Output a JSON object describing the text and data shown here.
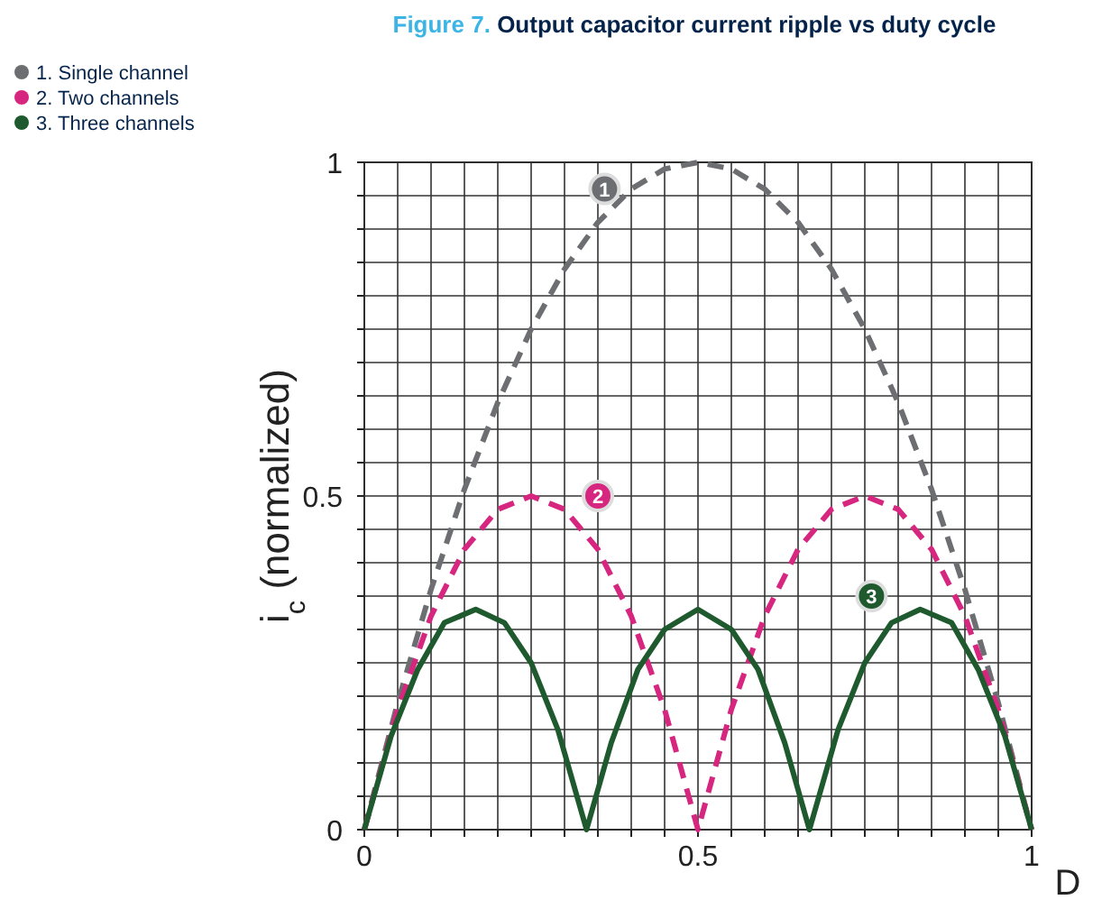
{
  "chart_data": {
    "type": "line",
    "title": "Figure 7. Output capacitor current ripple vs duty cycle",
    "xlabel": "D",
    "ylabel": "i$_{c}$ (normalized)",
    "xlim": [
      0,
      1
    ],
    "ylim": [
      0,
      1
    ],
    "xticks": [
      0,
      {
        "value": 0.05,
        "label": null
      },
      {
        "value": 0.1,
        "label": null
      },
      {
        "value": 0.15,
        "label": null
      },
      {
        "value": 0.2,
        "label": null
      },
      {
        "value": 0.25,
        "label": null
      },
      {
        "value": 0.3,
        "label": null
      },
      {
        "value": 0.35,
        "label": null
      },
      {
        "value": 0.4,
        "label": null
      },
      {
        "value": 0.45,
        "label": null
      },
      0.5,
      {
        "value": 0.55,
        "label": null
      },
      {
        "value": 0.6,
        "label": null
      },
      {
        "value": 0.65,
        "label": null
      },
      {
        "value": 0.7,
        "label": null
      },
      {
        "value": 0.75,
        "label": null
      },
      {
        "value": 0.8,
        "label": null
      },
      {
        "value": 0.85,
        "label": null
      },
      {
        "value": 0.9,
        "label": null
      },
      {
        "value": 0.95,
        "label": null
      },
      1
    ],
    "yticks": [
      0,
      {
        "value": 0.05,
        "label": null
      },
      {
        "value": 0.1,
        "label": null
      },
      {
        "value": 0.15,
        "label": null
      },
      {
        "value": 0.2,
        "label": null
      },
      {
        "value": 0.25,
        "label": null
      },
      {
        "value": 0.3,
        "label": null
      },
      {
        "value": 0.35,
        "label": null
      },
      {
        "value": 0.4,
        "label": null
      },
      {
        "value": 0.45,
        "label": null
      },
      0.5,
      {
        "value": 0.55,
        "label": null
      },
      {
        "value": 0.6,
        "label": null
      },
      {
        "value": 0.65,
        "label": null
      },
      {
        "value": 0.7,
        "label": null
      },
      {
        "value": 0.75,
        "label": null
      },
      {
        "value": 0.8,
        "label": null
      },
      {
        "value": 0.85,
        "label": null
      },
      {
        "value": 0.9,
        "label": null
      },
      {
        "value": 0.95,
        "label": null
      },
      1
    ],
    "grid": true,
    "legend": "top left",
    "series": [
      {
        "name": "1. Single channel",
        "color": "#6d6e71",
        "line_style": "dashed",
        "x": [
          0,
          0.05,
          0.1,
          0.15,
          0.2,
          0.25,
          0.3,
          0.35,
          0.4,
          0.45,
          0.5,
          0.55,
          0.6,
          0.65,
          0.7,
          0.75,
          0.8,
          0.85,
          0.9,
          0.95,
          1
        ],
        "values": [
          0,
          0.19,
          0.36,
          0.51,
          0.64,
          0.75,
          0.84,
          0.91,
          0.96,
          0.99,
          1,
          0.99,
          0.96,
          0.91,
          0.84,
          0.75,
          0.64,
          0.51,
          0.36,
          0.19,
          0
        ]
      },
      {
        "name": "2. Two channels",
        "color": "#d6267f",
        "line_style": "dashed",
        "x": [
          0,
          0.05,
          0.1,
          0.15,
          0.2,
          0.25,
          0.3,
          0.35,
          0.4,
          0.45,
          0.5,
          0.55,
          0.6,
          0.65,
          0.7,
          0.75,
          0.8,
          0.85,
          0.9,
          0.95,
          1
        ],
        "values": [
          0,
          0.18,
          0.32,
          0.42,
          0.48,
          0.5,
          0.48,
          0.42,
          0.32,
          0.18,
          0,
          0.18,
          0.32,
          0.42,
          0.48,
          0.5,
          0.48,
          0.42,
          0.32,
          0.18,
          0
        ]
      },
      {
        "name": "3. Three channels",
        "color": "#1e5a2e",
        "line_style": "solid",
        "x": [
          0,
          0.04,
          0.08,
          0.12,
          0.167,
          0.21,
          0.25,
          0.29,
          0.333,
          0.37,
          0.41,
          0.45,
          0.5,
          0.55,
          0.59,
          0.63,
          0.667,
          0.71,
          0.75,
          0.79,
          0.833,
          0.88,
          0.92,
          0.96,
          1
        ],
        "values": [
          0,
          0.14,
          0.24,
          0.31,
          0.33,
          0.31,
          0.25,
          0.15,
          0,
          0.13,
          0.24,
          0.3,
          0.33,
          0.3,
          0.24,
          0.13,
          0,
          0.15,
          0.25,
          0.31,
          0.33,
          0.31,
          0.24,
          0.14,
          0
        ]
      }
    ],
    "annotations": [
      {
        "text": "1",
        "x": 0.36,
        "y": 0.96
      },
      {
        "text": "2",
        "x": 0.35,
        "y": 0.5
      },
      {
        "text": "3",
        "x": 0.76,
        "y": 0.35
      }
    ]
  }
}
